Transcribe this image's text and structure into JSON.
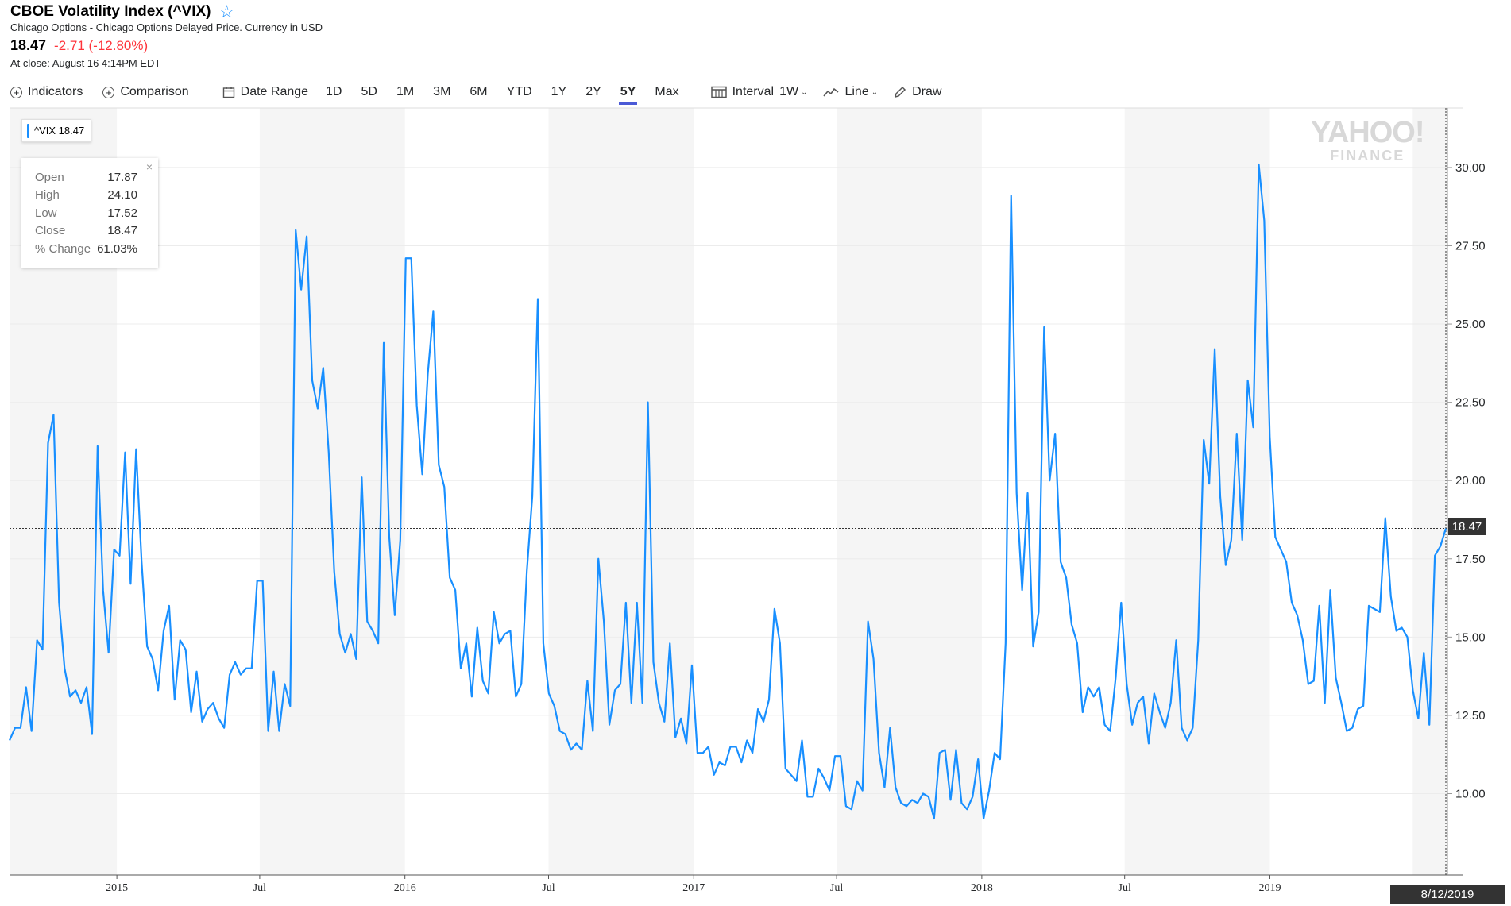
{
  "header": {
    "title": "CBOE Volatility Index (^VIX)",
    "subtitle": "Chicago Options - Chicago Options Delayed Price. Currency in USD",
    "price": "18.47",
    "change": "-2.71 (-12.80%)",
    "close_time": "At close: August 16 4:14PM EDT"
  },
  "toolbar": {
    "indicators": "Indicators",
    "comparison": "Comparison",
    "date_range": "Date Range",
    "ranges": [
      "1D",
      "5D",
      "1M",
      "3M",
      "6M",
      "YTD",
      "1Y",
      "2Y",
      "5Y",
      "Max"
    ],
    "active_range": "5Y",
    "interval": "Interval",
    "interval_value": "1W",
    "chart_type": "Line",
    "draw": "Draw"
  },
  "legend": {
    "label": "^VIX 18.47"
  },
  "tooltip": {
    "rows": [
      {
        "label": "Open",
        "value": "17.87"
      },
      {
        "label": "High",
        "value": "24.10"
      },
      {
        "label": "Low",
        "value": "17.52"
      },
      {
        "label": "Close",
        "value": "18.47"
      },
      {
        "label": "% Change",
        "value": "61.03%"
      }
    ],
    "close": "×"
  },
  "watermark": {
    "line1": "YAHOO!",
    "line2": "FINANCE"
  },
  "price_tag": "18.47",
  "date_tag": "8/12/2019",
  "colors": {
    "line": "#188fff",
    "band": "#f5f5f5",
    "negative": "#ff333a",
    "active_tab": "#4b5ad6"
  },
  "chart_data": {
    "type": "line",
    "series": [
      {
        "name": "^VIX",
        "values": [
          11.7,
          12.1,
          12.1,
          13.4,
          12.0,
          14.9,
          14.6,
          21.2,
          22.1,
          16.1,
          14.0,
          13.1,
          13.3,
          12.9,
          13.4,
          11.9,
          21.1,
          16.5,
          14.5,
          17.8,
          17.6,
          20.9,
          16.7,
          21.0,
          17.4,
          14.7,
          14.3,
          13.3,
          15.2,
          16.0,
          13.0,
          14.9,
          14.6,
          12.6,
          13.9,
          12.3,
          12.7,
          12.9,
          12.4,
          12.1,
          13.8,
          14.2,
          13.8,
          14.0,
          14.0,
          16.8,
          16.8,
          12.0,
          13.9,
          12.0,
          13.5,
          12.8,
          28.0,
          26.1,
          27.8,
          23.2,
          22.3,
          23.6,
          20.9,
          17.1,
          15.1,
          14.5,
          15.1,
          14.3,
          20.1,
          15.5,
          15.2,
          14.8,
          24.4,
          18.2,
          15.7,
          18.1,
          27.1,
          27.1,
          22.4,
          20.2,
          23.4,
          25.4,
          20.5,
          19.8,
          16.9,
          16.5,
          14.0,
          14.8,
          13.1,
          15.3,
          13.6,
          13.2,
          15.8,
          14.8,
          15.1,
          15.2,
          13.1,
          13.5,
          17.1,
          19.5,
          25.8,
          14.8,
          13.2,
          12.8,
          12.0,
          11.9,
          11.4,
          11.6,
          11.4,
          13.6,
          12.0,
          17.5,
          15.5,
          12.2,
          13.3,
          13.5,
          16.1,
          12.9,
          16.1,
          12.9,
          22.5,
          14.2,
          12.9,
          12.3,
          14.8,
          11.8,
          12.4,
          11.6,
          14.1,
          11.3,
          11.3,
          11.5,
          10.6,
          11.0,
          10.9,
          11.5,
          11.5,
          11.0,
          11.7,
          11.3,
          12.7,
          12.3,
          13.0,
          15.9,
          14.8,
          10.8,
          10.6,
          10.4,
          11.7,
          9.9,
          9.9,
          10.8,
          10.5,
          10.1,
          11.2,
          11.2,
          9.6,
          9.5,
          10.4,
          10.1,
          15.5,
          14.3,
          11.3,
          10.2,
          12.1,
          10.2,
          9.7,
          9.6,
          9.8,
          9.7,
          10.0,
          9.9,
          9.2,
          11.3,
          11.4,
          9.8,
          11.4,
          9.7,
          9.5,
          9.9,
          11.1,
          9.2,
          10.1,
          11.3,
          11.1,
          14.8,
          29.1,
          19.6,
          16.5,
          19.6,
          14.7,
          15.8,
          24.9,
          20.0,
          21.5,
          17.4,
          16.9,
          15.4,
          14.8,
          12.6,
          13.4,
          13.1,
          13.4,
          12.2,
          12.0,
          13.7,
          16.1,
          13.5,
          12.2,
          12.9,
          13.1,
          11.6,
          13.2,
          12.6,
          12.1,
          12.9,
          14.9,
          12.1,
          11.7,
          12.1,
          14.9,
          21.3,
          19.9,
          24.2,
          19.5,
          17.3,
          18.1,
          21.5,
          18.1,
          23.2,
          21.7,
          30.1,
          28.3,
          21.4,
          18.2,
          17.8,
          17.4,
          16.1,
          15.7,
          14.9,
          13.5,
          13.6,
          16.0,
          12.9,
          16.5,
          13.7,
          12.9,
          12.0,
          12.1,
          12.7,
          12.8,
          16.0,
          15.9,
          15.8,
          18.8,
          16.3,
          15.2,
          15.3,
          15.0,
          13.3,
          12.4,
          14.5,
          12.2,
          17.6,
          17.9,
          18.47
        ]
      }
    ],
    "x_tick_labels": [
      "2015",
      "Jul",
      "2016",
      "Jul",
      "2017",
      "Jul",
      "2018",
      "Jul",
      "2019"
    ],
    "y_tick_labels": [
      "10.00",
      "12.50",
      "15.00",
      "17.50",
      "20.00",
      "22.50",
      "25.00",
      "27.50",
      "30.00"
    ],
    "y_ticks": [
      10,
      12.5,
      15,
      17.5,
      20,
      22.5,
      25,
      27.5,
      30
    ],
    "ylim": [
      7.4,
      31.9
    ],
    "x_range": [
      "2014-08-18",
      "2019-08-12"
    ],
    "current_value": 18.47,
    "grid": true,
    "legend": "top-left"
  }
}
